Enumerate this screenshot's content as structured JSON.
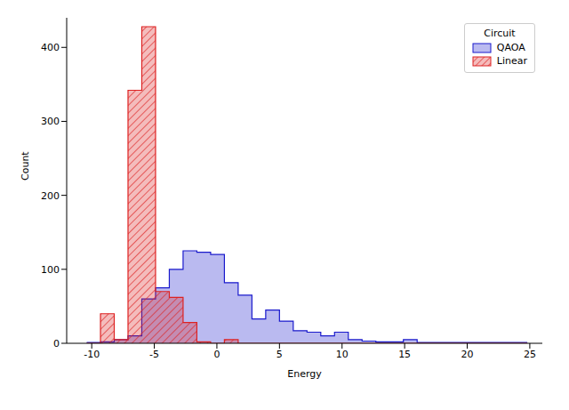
{
  "chart_data": {
    "type": "histogram",
    "x_label": "Energy",
    "y_label": "Count",
    "legend": "upper right",
    "legend_title": "Circuit",
    "bins": [
      -10.4,
      -9.3,
      -8.2,
      -7.1,
      -6.0,
      -4.9,
      -3.8,
      -2.7,
      -1.6,
      -0.5,
      0.6,
      1.7,
      2.8,
      3.9,
      5.0,
      6.1,
      7.2,
      8.3,
      9.4,
      10.5,
      11.6,
      12.7,
      13.8,
      14.9,
      16.0,
      17.1,
      18.2,
      19.3,
      20.4,
      21.5,
      22.6,
      23.7,
      24.8
    ],
    "series": [
      {
        "name": "QAOA",
        "color": "#1a1acc",
        "values": [
          1,
          2,
          5,
          10,
          60,
          75,
          100,
          125,
          123,
          120,
          82,
          65,
          33,
          45,
          30,
          17,
          15,
          10,
          15,
          5,
          3,
          2,
          2,
          5,
          1,
          1,
          1,
          1,
          1,
          1,
          1,
          1
        ]
      },
      {
        "name": "Linear",
        "color": "#dd2222",
        "values": [
          0,
          40,
          5,
          342,
          428,
          70,
          62,
          28,
          2,
          0,
          5,
          0,
          0,
          0,
          0,
          0,
          0,
          0,
          0,
          0,
          0,
          0,
          0,
          0,
          0,
          0,
          0,
          0,
          0,
          0,
          0,
          0
        ]
      }
    ],
    "xlim": [
      -12,
      26
    ],
    "xticks": [
      -10,
      -5,
      0,
      5,
      10,
      15,
      20,
      25
    ],
    "ylim": [
      0,
      440
    ],
    "yticks": [
      0,
      100,
      200,
      300,
      400
    ]
  }
}
